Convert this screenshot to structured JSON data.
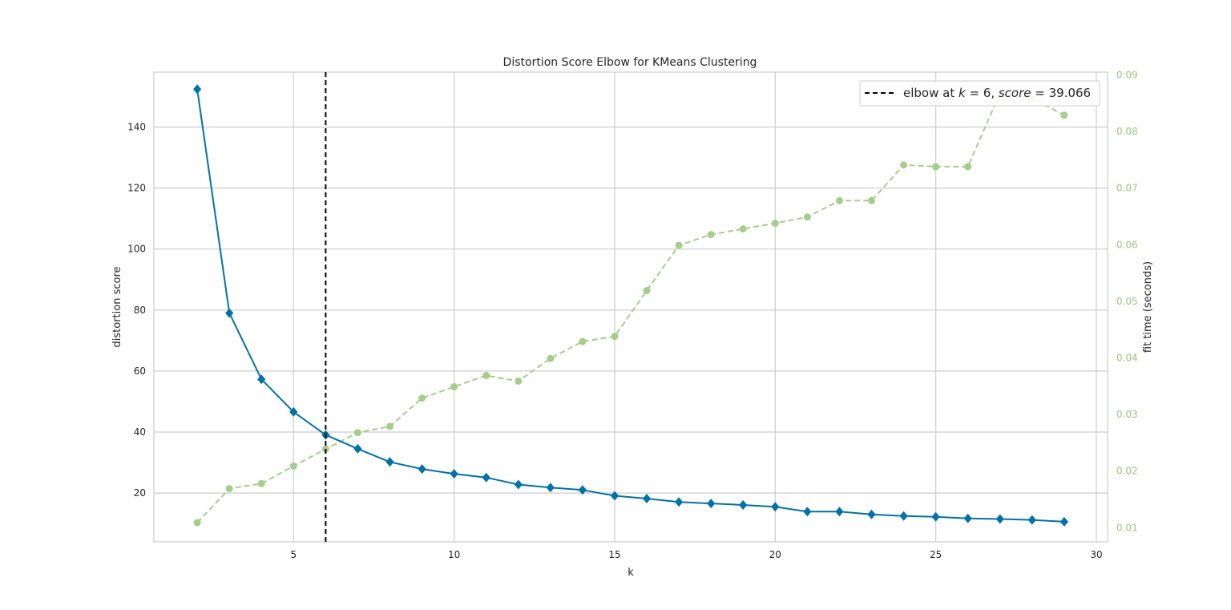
{
  "chart_data": {
    "type": "line",
    "title": "Distortion Score Elbow for KMeans Clustering",
    "xlabel": "k",
    "ylabel": "distortion score",
    "y2label": "fit time (seconds)",
    "xlim": [
      0.65,
      30.35
    ],
    "ylim": [
      4.0,
      158.0
    ],
    "y2lim": [
      0.0075,
      0.0905
    ],
    "xticks": [
      5,
      10,
      15,
      20,
      25,
      30
    ],
    "yticks": [
      20,
      40,
      60,
      80,
      100,
      120,
      140
    ],
    "y2ticks": [
      0.01,
      0.02,
      0.03,
      0.04,
      0.05,
      0.06,
      0.07,
      0.08,
      0.09
    ],
    "y2tick_labels": [
      "0.01",
      "0.02",
      "0.03",
      "0.04",
      "0.05",
      "0.06",
      "0.07",
      "0.08",
      "0.09"
    ],
    "grid": true,
    "legend_position": "top-right",
    "elbow": {
      "k": 6,
      "legend_prefix": "elbow at ",
      "legend_k_var": "k",
      "legend_k_eq": " = 6, ",
      "legend_score_var": "score",
      "legend_score_eq": " = 39.066"
    },
    "x": [
      2,
      3,
      4,
      5,
      6,
      7,
      8,
      9,
      10,
      11,
      12,
      13,
      14,
      15,
      16,
      17,
      18,
      19,
      20,
      21,
      22,
      23,
      24,
      25,
      26,
      27,
      28,
      29
    ],
    "series": [
      {
        "axis": "left",
        "values": [
          152.4,
          79.0,
          57.3,
          46.6,
          39.07,
          34.5,
          30.2,
          27.9,
          26.3,
          25.1,
          22.8,
          21.8,
          21.0,
          19.1,
          18.2,
          17.1,
          16.6,
          16.1,
          15.5,
          13.9,
          13.9,
          13.0,
          12.5,
          12.2,
          11.7,
          11.5,
          11.2,
          10.6
        ],
        "color": "#0072a6",
        "marker": "diamond",
        "style": "solid"
      },
      {
        "axis": "right",
        "values": [
          0.0109,
          0.0169,
          0.0178,
          0.0209,
          0.0239,
          0.0268,
          0.0279,
          0.0329,
          0.0349,
          0.0369,
          0.0359,
          0.0399,
          0.0429,
          0.0438,
          0.0519,
          0.0599,
          0.0618,
          0.0628,
          0.0638,
          0.0649,
          0.0678,
          0.0678,
          0.0741,
          0.0738,
          0.0738,
          0.0868,
          0.0859,
          0.0829
        ],
        "color": "#a5cd8c",
        "marker": "circle",
        "style": "dashed"
      }
    ],
    "colors": {
      "grid": "#cccccc",
      "frame": "#cccccc",
      "text": "#262626",
      "right_axis_text": "#9bc47f",
      "elbow_line": "#000000"
    }
  }
}
